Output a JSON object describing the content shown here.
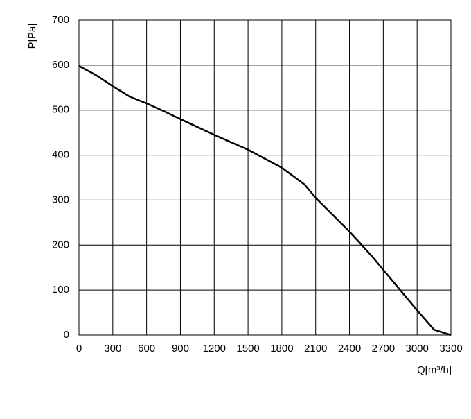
{
  "chart_data": {
    "type": "line",
    "xlabel": "Q[m³/h]",
    "ylabel": "P[Pa]",
    "series": [
      {
        "name": "curve",
        "color": "#000000",
        "x": [
          0,
          150,
          300,
          450,
          600,
          750,
          900,
          1200,
          1500,
          1800,
          2000,
          2100,
          2400,
          2600,
          2800,
          3000,
          3150,
          3300
        ],
        "values": [
          598,
          578,
          553,
          530,
          515,
          498,
          480,
          445,
          412,
          372,
          335,
          305,
          230,
          175,
          115,
          55,
          12,
          0
        ]
      }
    ],
    "xlim": [
      0,
      3300
    ],
    "xticks": [
      0,
      300,
      600,
      900,
      1200,
      1500,
      1800,
      2100,
      2400,
      2700,
      3000,
      3300
    ],
    "ylim": [
      0,
      700
    ],
    "yticks": [
      0,
      100,
      200,
      300,
      400,
      500,
      600,
      700
    ],
    "grid": true
  }
}
